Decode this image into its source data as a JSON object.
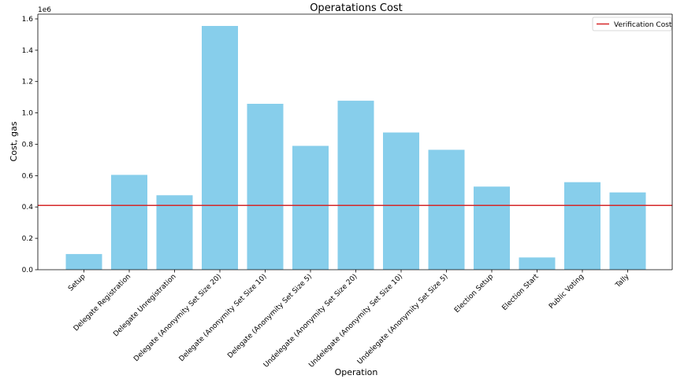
{
  "chart_data": {
    "type": "bar",
    "title": "Operatations Cost",
    "xlabel": "Operation",
    "ylabel": "Cost, gas",
    "y_offset_label": "1e6",
    "ylim": [
      0,
      1.63
    ],
    "y_ticks": [
      "0.0",
      "0.2",
      "0.4",
      "0.6",
      "0.8",
      "1.0",
      "1.2",
      "1.4",
      "1.6"
    ],
    "y_scale": 1000000,
    "categories": [
      "Setup",
      "Delegate Registration",
      "Delegate Unregistration",
      "Delegate (Anonymity Set Size 20)",
      "Delegate (Anonymity Set Size 10)",
      "Delegate (Anonymity Set Size 5)",
      "Undelegate (Anonymity Set Size 20)",
      "Undelegate (Anonymity Set Size 10)",
      "Undelegate (Anonymity Set Size 5)",
      "Election Setup",
      "Election Start",
      "Public Voting",
      "Tally"
    ],
    "values": [
      100000,
      605000,
      475000,
      1555000,
      1058000,
      790000,
      1078000,
      875000,
      765000,
      530000,
      78000,
      558000,
      493000
    ],
    "bar_color": "#87ceeb",
    "reference_line": {
      "name": "Verification Cost",
      "value": 410000,
      "color": "#d62728"
    },
    "legend_position": "upper right",
    "grid": false
  }
}
